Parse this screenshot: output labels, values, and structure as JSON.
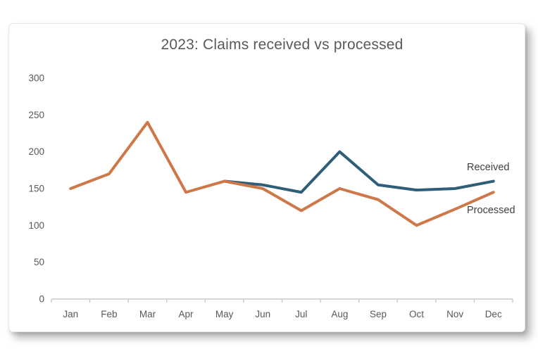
{
  "chart_data": {
    "type": "line",
    "title": "2023: Claims received vs processed",
    "categories": [
      "Jan",
      "Feb",
      "Mar",
      "Apr",
      "May",
      "Jun",
      "Jul",
      "Aug",
      "Sep",
      "Oct",
      "Nov",
      "Dec"
    ],
    "series": [
      {
        "name": "Received",
        "color": "#2E5E78",
        "values": [
          null,
          null,
          null,
          null,
          160,
          155,
          145,
          200,
          155,
          148,
          150,
          160
        ],
        "label_placement": "right-end-above-line"
      },
      {
        "name": "Processed",
        "color": "#CE7849",
        "values": [
          150,
          170,
          240,
          145,
          160,
          150,
          120,
          150,
          135,
          100,
          122,
          145
        ],
        "label_placement": "right-end-below-line"
      }
    ],
    "xlabel": "",
    "ylabel": "",
    "ylim": [
      0,
      300
    ],
    "ytick_step": 50,
    "ytick_labels": [
      "0",
      "50",
      "100",
      "150",
      "200",
      "250",
      "300"
    ],
    "grid": false,
    "legend": "inline-end-labels",
    "line_width": 4,
    "colors": {
      "axis_line": "#C9C9C9",
      "tick_text": "#595959",
      "title_text": "#595959",
      "series_label_text": "#3F3F3F",
      "card_background": "#FFFFFF",
      "page_background": "#FFFFFF"
    }
  }
}
